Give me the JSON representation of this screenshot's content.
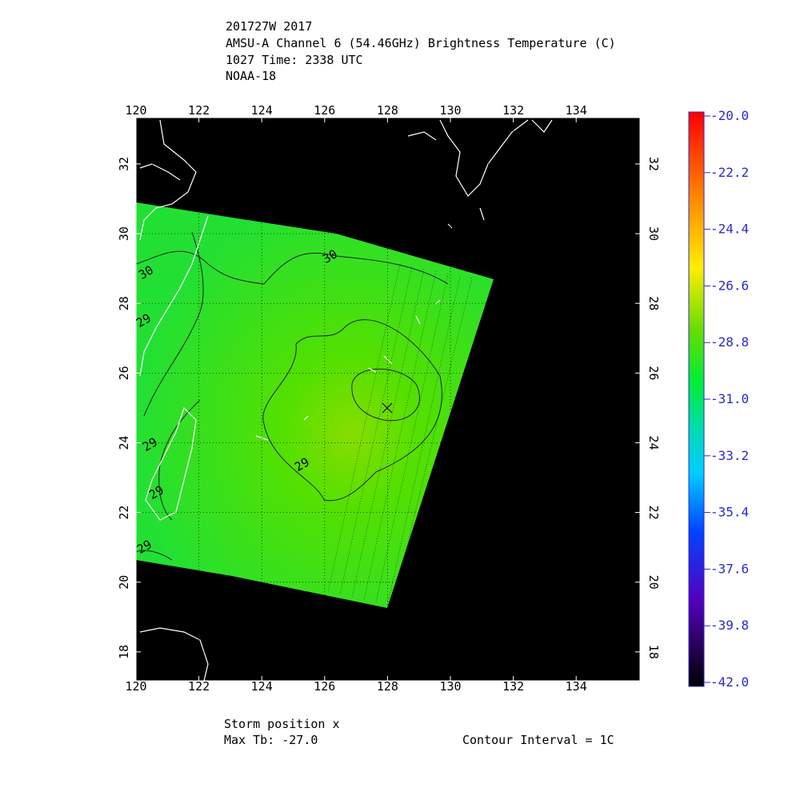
{
  "header": {
    "lines": [
      "201727W 2017",
      "AMSU-A Channel 6 (54.46GHz) Brightness Temperature (C)",
      "1027 Time: 2338 UTC",
      "NOAA-18"
    ]
  },
  "map": {
    "xlim": [
      120,
      136.03
    ],
    "ylim": [
      17.17,
      33.33
    ],
    "xticks": [
      120,
      122,
      124,
      126,
      128,
      130,
      132,
      134
    ],
    "yticks": [
      18,
      20,
      22,
      24,
      26,
      28,
      30,
      32
    ],
    "contour_labels": [
      "30",
      "30",
      "29",
      "29",
      "29",
      "29",
      "29"
    ],
    "storm_marker": "x"
  },
  "colorbar": {
    "lim": [
      -42,
      -20
    ],
    "ticks": [
      {
        "value": -20,
        "label": "-20.0"
      },
      {
        "value": -22.2,
        "label": "-22.2"
      },
      {
        "value": -24.4,
        "label": "-24.4"
      },
      {
        "value": -26.6,
        "label": "-26.6"
      },
      {
        "value": -28.8,
        "label": "-28.8"
      },
      {
        "value": -31,
        "label": "-31.0"
      },
      {
        "value": -33.2,
        "label": "-33.2"
      },
      {
        "value": -35.4,
        "label": "-35.4"
      },
      {
        "value": -37.6,
        "label": "-37.6"
      },
      {
        "value": -39.8,
        "label": "-39.8"
      },
      {
        "value": -42,
        "label": "-42.0"
      }
    ]
  },
  "footer": {
    "storm": "Storm position x",
    "max_tb": "Max Tb: -27.0",
    "interval": "Contour Interval = 1C"
  }
}
